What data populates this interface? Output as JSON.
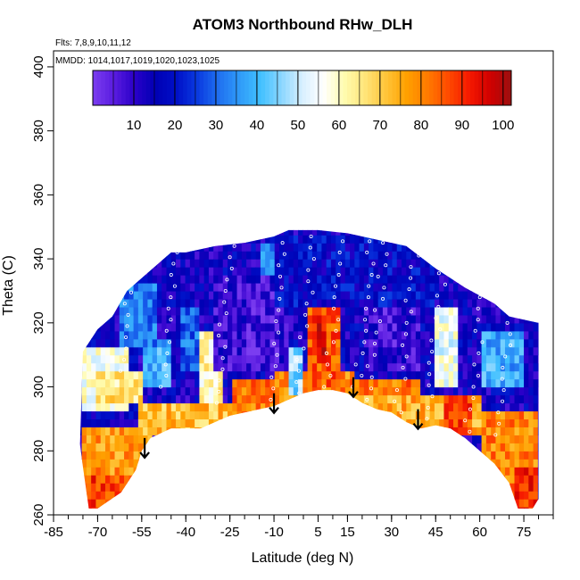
{
  "chart_data": {
    "type": "heatmap",
    "title": "ATOM3 Northbound RHw_DLH",
    "annotations": {
      "flights": "Flts: 7,8,9,10,11,12",
      "dates": "MMDD: 1014,1017,1019,1020,1023,1025"
    },
    "xlabel": "Latitude (deg N)",
    "ylabel": "Theta (C)",
    "xlim": [
      -85,
      85
    ],
    "ylim": [
      260,
      405
    ],
    "x_ticks": [
      -85,
      -70,
      -55,
      -40,
      -25,
      -10,
      5,
      15,
      30,
      45,
      60,
      75
    ],
    "x_minor_step": 5,
    "y_ticks": [
      260,
      280,
      300,
      320,
      340,
      360,
      380,
      400
    ],
    "colorbar": {
      "ticks": [
        10,
        20,
        30,
        40,
        50,
        60,
        70,
        80,
        90,
        100
      ],
      "range": [
        0,
        102
      ],
      "colors": [
        "#7b3df0",
        "#5a1ce0",
        "#2a00c8",
        "#0000b4",
        "#0010c8",
        "#0a3ae0",
        "#1f6ff0",
        "#2f9af8",
        "#40c0ff",
        "#8ad6ff",
        "#d8f0ff",
        "#ffffff",
        "#fffcb0",
        "#ffe57a",
        "#ffc53a",
        "#ffa000",
        "#ff7a00",
        "#ff4a00",
        "#f51800",
        "#d00000",
        "#9c1010"
      ]
    },
    "arrows": [
      {
        "lat": -54,
        "theta": 284
      },
      {
        "lat": -10,
        "theta": 298
      },
      {
        "lat": 17,
        "theta": 303
      },
      {
        "lat": 39,
        "theta": 293
      }
    ],
    "upper_boundary": [
      [
        -75,
        311
      ],
      [
        -70,
        318
      ],
      [
        -65,
        322
      ],
      [
        -60,
        330
      ],
      [
        -55,
        334
      ],
      [
        -50,
        338
      ],
      [
        -45,
        342
      ],
      [
        -40,
        342
      ],
      [
        -30,
        344
      ],
      [
        -20,
        345
      ],
      [
        -10,
        347
      ],
      [
        -5,
        349
      ],
      [
        5,
        349
      ],
      [
        15,
        348
      ],
      [
        25,
        346
      ],
      [
        35,
        344
      ],
      [
        45,
        337
      ],
      [
        55,
        331
      ],
      [
        65,
        326
      ],
      [
        70,
        322
      ],
      [
        75,
        321
      ],
      [
        80,
        320
      ]
    ],
    "lower_boundary": [
      [
        -76,
        282
      ],
      [
        -75,
        275
      ],
      [
        -73,
        262
      ],
      [
        -70,
        262
      ],
      [
        -62,
        267
      ],
      [
        -57,
        274
      ],
      [
        -55,
        280
      ],
      [
        -52,
        284
      ],
      [
        -45,
        287
      ],
      [
        -35,
        287
      ],
      [
        -25,
        291
      ],
      [
        -15,
        293
      ],
      [
        -10,
        294
      ],
      [
        -5,
        296
      ],
      [
        0,
        298
      ],
      [
        5,
        299
      ],
      [
        10,
        299
      ],
      [
        15,
        298
      ],
      [
        20,
        295
      ],
      [
        25,
        293
      ],
      [
        30,
        292
      ],
      [
        35,
        289
      ],
      [
        40,
        287
      ],
      [
        45,
        288
      ],
      [
        50,
        287
      ],
      [
        55,
        284
      ],
      [
        60,
        280
      ],
      [
        65,
        276
      ],
      [
        70,
        270
      ],
      [
        73,
        262
      ],
      [
        78,
        262
      ],
      [
        80,
        265
      ],
      [
        80,
        320
      ]
    ],
    "value_zones": [
      {
        "lat": [
          -77,
          80
        ],
        "theta": [
          260,
          350
        ],
        "value": 14
      },
      {
        "lat": [
          -76,
          -52
        ],
        "theta": [
          260,
          288
        ],
        "value": 78
      },
      {
        "lat": [
          -74,
          -60
        ],
        "theta": [
          260,
          272
        ],
        "value": 88
      },
      {
        "lat": [
          -56,
          0
        ],
        "theta": [
          286,
          295
        ],
        "value": 72
      },
      {
        "lat": [
          -25,
          40
        ],
        "theta": [
          290,
          302
        ],
        "value": 82
      },
      {
        "lat": [
          -10,
          18
        ],
        "theta": [
          296,
          304
        ],
        "value": 80
      },
      {
        "lat": [
          1,
          13
        ],
        "theta": [
          300,
          331
        ],
        "value": 86
      },
      {
        "lat": [
          4,
          8
        ],
        "theta": [
          308,
          322
        ],
        "value": 94
      },
      {
        "lat": [
          16,
          60
        ],
        "theta": [
          284,
          298
        ],
        "value": 75
      },
      {
        "lat": [
          48,
          58
        ],
        "theta": [
          285,
          298
        ],
        "value": 88
      },
      {
        "lat": [
          60,
          80
        ],
        "theta": [
          260,
          292
        ],
        "value": 80
      },
      {
        "lat": [
          72,
          80
        ],
        "theta": [
          260,
          276
        ],
        "value": 90
      },
      {
        "lat": [
          -76,
          -60
        ],
        "theta": [
          292,
          312
        ],
        "value": 58
      },
      {
        "lat": [
          -70,
          -55
        ],
        "theta": [
          296,
          306
        ],
        "value": 66
      },
      {
        "lat": [
          -35,
          -28
        ],
        "theta": [
          296,
          318
        ],
        "value": 62
      },
      {
        "lat": [
          -55,
          -45
        ],
        "theta": [
          300,
          315
        ],
        "value": 40
      },
      {
        "lat": [
          -62,
          -50
        ],
        "theta": [
          312,
          332
        ],
        "value": 32
      },
      {
        "lat": [
          -42,
          -36
        ],
        "theta": [
          305,
          325
        ],
        "value": 30
      },
      {
        "lat": [
          -30,
          -5
        ],
        "theta": [
          305,
          335
        ],
        "value": 9
      },
      {
        "lat": [
          -20,
          -8
        ],
        "theta": [
          310,
          330
        ],
        "value": 6
      },
      {
        "lat": [
          20,
          40
        ],
        "theta": [
          306,
          338
        ],
        "value": 9
      },
      {
        "lat": [
          25,
          33
        ],
        "theta": [
          312,
          325
        ],
        "value": 5
      },
      {
        "lat": [
          -15,
          -5
        ],
        "theta": [
          336,
          346
        ],
        "value": 36
      },
      {
        "lat": [
          10,
          28
        ],
        "theta": [
          330,
          342
        ],
        "value": 40
      },
      {
        "lat": [
          44,
          52
        ],
        "theta": [
          300,
          325
        ],
        "value": 55
      },
      {
        "lat": [
          60,
          75
        ],
        "theta": [
          300,
          318
        ],
        "value": 38
      },
      {
        "lat": [
          -5,
          0
        ],
        "theta": [
          298,
          312
        ],
        "value": 45
      },
      {
        "lat": [
          -10,
          45
        ],
        "theta": [
          326,
          347
        ],
        "value": 18
      }
    ]
  }
}
